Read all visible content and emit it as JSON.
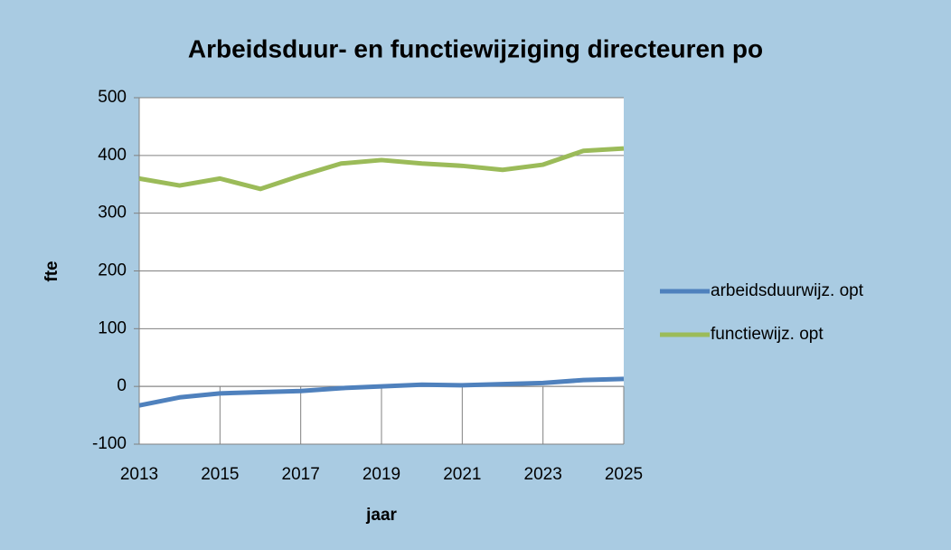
{
  "chart_data": {
    "type": "line",
    "title": "Arbeidsduur- en functiewijziging directeuren po",
    "x_label": "jaar",
    "y_label": "fte",
    "x": [
      2013,
      2014,
      2015,
      2016,
      2017,
      2018,
      2019,
      2020,
      2021,
      2022,
      2023,
      2024,
      2025
    ],
    "series": [
      {
        "name": "arbeidsduurwijz. opt",
        "color": "#4f81bd",
        "values": [
          -33,
          -19,
          -12,
          -10,
          -8,
          -3,
          0,
          3,
          2,
          4,
          6,
          11,
          13
        ]
      },
      {
        "name": "functiewijz. opt",
        "color": "#9bbb59",
        "values": [
          360,
          348,
          360,
          342,
          365,
          386,
          392,
          386,
          382,
          375,
          384,
          408,
          412
        ]
      }
    ],
    "xlim": [
      2013,
      2025
    ],
    "xticks": [
      2013,
      2015,
      2017,
      2019,
      2021,
      2023,
      2025
    ],
    "ylim": [
      -100,
      500
    ],
    "yticks": [
      -100,
      0,
      100,
      200,
      300,
      400,
      500
    ],
    "grid": true,
    "legend": "right"
  }
}
